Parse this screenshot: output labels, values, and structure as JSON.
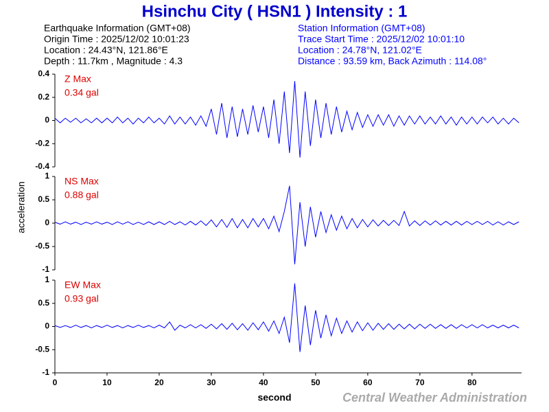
{
  "header": {
    "title": "Hsinchu City ( HSN1 ) Intensity : 1",
    "earthquake_info": [
      "Earthquake Information (GMT+08)",
      "Origin Time : 2025/12/02 10:01:23",
      "Location : 24.43°N, 121.86°E",
      "Depth : 11.7km , Magnitude : 4.3"
    ],
    "station_info": [
      "Station Information (GMT+08)",
      "Trace Start Time : 2025/12/02 10:01:10",
      "Location : 24.78°N, 121.02°E",
      "Distance : 93.59 km, Back Azimuth : 114.08°"
    ]
  },
  "ylabel": "acceleration",
  "footer": "Central Weather Administration",
  "chart_data": [
    {
      "type": "line",
      "annotation": [
        "Z Max",
        "0.34 gal"
      ],
      "color": "#0000ff",
      "xlim": [
        0,
        89.5
      ],
      "ylim": [
        -0.4,
        0.4
      ],
      "yticks": [
        0.4,
        0.2,
        0,
        -0.2,
        -0.4
      ],
      "x": [
        0,
        1,
        2,
        3,
        4,
        5,
        6,
        7,
        8,
        9,
        10,
        11,
        12,
        13,
        14,
        15,
        16,
        17,
        18,
        19,
        20,
        21,
        22,
        23,
        24,
        25,
        26,
        27,
        28,
        29,
        30,
        31,
        32,
        33,
        34,
        35,
        36,
        37,
        38,
        39,
        40,
        41,
        42,
        43,
        44,
        45,
        46,
        47,
        48,
        49,
        50,
        51,
        52,
        53,
        54,
        55,
        56,
        57,
        58,
        59,
        60,
        61,
        62,
        63,
        64,
        65,
        66,
        67,
        68,
        69,
        70,
        71,
        72,
        73,
        74,
        75,
        76,
        77,
        78,
        79,
        80,
        81,
        82,
        83,
        84,
        85,
        86,
        87,
        88,
        89
      ],
      "values": [
        0.02,
        -0.02,
        0.02,
        -0.015,
        0.02,
        -0.02,
        0.015,
        -0.02,
        0.02,
        -0.02,
        0.02,
        -0.02,
        0.03,
        -0.02,
        0.02,
        -0.03,
        0.02,
        -0.02,
        0.03,
        -0.02,
        0.02,
        -0.03,
        0.04,
        -0.03,
        0.03,
        -0.03,
        0.03,
        -0.04,
        0.04,
        -0.05,
        0.1,
        -0.12,
        0.15,
        -0.15,
        0.12,
        -0.14,
        0.1,
        -0.12,
        0.13,
        -0.1,
        0.12,
        -0.15,
        0.18,
        -0.2,
        0.25,
        -0.28,
        0.34,
        -0.32,
        0.25,
        -0.22,
        0.18,
        -0.15,
        0.15,
        -0.12,
        0.12,
        -0.1,
        0.08,
        -0.08,
        0.07,
        -0.06,
        0.05,
        -0.05,
        0.05,
        -0.04,
        0.05,
        -0.05,
        0.04,
        -0.04,
        0.04,
        -0.03,
        0.04,
        -0.03,
        0.03,
        -0.03,
        0.04,
        -0.03,
        0.03,
        -0.04,
        0.03,
        -0.03,
        0.03,
        -0.03,
        0.03,
        -0.02,
        0.03,
        -0.03,
        0.02,
        -0.03,
        0.02,
        -0.02
      ]
    },
    {
      "type": "line",
      "annotation": [
        "NS Max",
        "0.88 gal"
      ],
      "color": "#0000ff",
      "xlim": [
        0,
        89.5
      ],
      "ylim": [
        -1,
        1
      ],
      "yticks": [
        1,
        0.5,
        0,
        -0.5,
        -1
      ],
      "x": [
        0,
        1,
        2,
        3,
        4,
        5,
        6,
        7,
        8,
        9,
        10,
        11,
        12,
        13,
        14,
        15,
        16,
        17,
        18,
        19,
        20,
        21,
        22,
        23,
        24,
        25,
        26,
        27,
        28,
        29,
        30,
        31,
        32,
        33,
        34,
        35,
        36,
        37,
        38,
        39,
        40,
        41,
        42,
        43,
        44,
        45,
        46,
        47,
        48,
        49,
        50,
        51,
        52,
        53,
        54,
        55,
        56,
        57,
        58,
        59,
        60,
        61,
        62,
        63,
        64,
        65,
        66,
        67,
        68,
        69,
        70,
        71,
        72,
        73,
        74,
        75,
        76,
        77,
        78,
        79,
        80,
        81,
        82,
        83,
        84,
        85,
        86,
        87,
        88,
        89
      ],
      "values": [
        0.02,
        -0.02,
        0.03,
        -0.02,
        0.02,
        -0.03,
        0.02,
        -0.02,
        0.03,
        -0.02,
        0.02,
        -0.03,
        0.03,
        -0.02,
        0.03,
        -0.03,
        0.02,
        -0.03,
        0.03,
        -0.03,
        0.03,
        -0.03,
        0.04,
        -0.03,
        0.03,
        -0.04,
        0.04,
        -0.04,
        0.05,
        -0.05,
        0.07,
        -0.08,
        0.08,
        -0.09,
        0.1,
        -0.1,
        0.08,
        -0.1,
        0.1,
        -0.08,
        0.1,
        -0.12,
        0.15,
        -0.18,
        0.25,
        0.8,
        -0.88,
        0.45,
        -0.5,
        0.35,
        -0.3,
        0.25,
        -0.2,
        0.18,
        -0.15,
        0.15,
        -0.12,
        0.1,
        -0.1,
        0.08,
        -0.08,
        0.07,
        -0.06,
        0.06,
        -0.05,
        0.06,
        -0.05,
        0.25,
        -0.06,
        0.05,
        -0.05,
        0.05,
        -0.04,
        0.05,
        -0.04,
        0.04,
        -0.04,
        0.04,
        -0.04,
        0.04,
        -0.03,
        0.04,
        -0.03,
        0.04,
        -0.04,
        0.03,
        -0.04,
        0.03,
        -0.03,
        0.03
      ]
    },
    {
      "type": "line",
      "annotation": [
        "EW Max",
        "0.93 gal"
      ],
      "color": "#0000ff",
      "xlabel": "second",
      "xlim": [
        0,
        89.5
      ],
      "ylim": [
        -1,
        1
      ],
      "yticks": [
        1,
        0.5,
        0,
        -0.5,
        -1
      ],
      "xticks": [
        0,
        10,
        20,
        30,
        40,
        50,
        60,
        70,
        80
      ],
      "x": [
        0,
        1,
        2,
        3,
        4,
        5,
        6,
        7,
        8,
        9,
        10,
        11,
        12,
        13,
        14,
        15,
        16,
        17,
        18,
        19,
        20,
        21,
        22,
        23,
        24,
        25,
        26,
        27,
        28,
        29,
        30,
        31,
        32,
        33,
        34,
        35,
        36,
        37,
        38,
        39,
        40,
        41,
        42,
        43,
        44,
        45,
        46,
        47,
        48,
        49,
        50,
        51,
        52,
        53,
        54,
        55,
        56,
        57,
        58,
        59,
        60,
        61,
        62,
        63,
        64,
        65,
        66,
        67,
        68,
        69,
        70,
        71,
        72,
        73,
        74,
        75,
        76,
        77,
        78,
        79,
        80,
        81,
        82,
        83,
        84,
        85,
        86,
        87,
        88,
        89
      ],
      "values": [
        0.02,
        -0.02,
        0.02,
        -0.02,
        0.03,
        -0.02,
        0.02,
        -0.03,
        0.02,
        -0.02,
        0.03,
        -0.02,
        0.02,
        -0.03,
        0.02,
        -0.02,
        0.03,
        -0.02,
        0.02,
        -0.03,
        0.03,
        -0.03,
        0.1,
        -0.08,
        0.03,
        -0.03,
        0.04,
        -0.03,
        0.04,
        -0.04,
        0.05,
        -0.05,
        0.06,
        -0.06,
        0.07,
        -0.07,
        0.06,
        -0.08,
        0.08,
        -0.07,
        0.1,
        -0.1,
        0.12,
        -0.15,
        0.2,
        -0.35,
        0.93,
        -0.55,
        0.45,
        -0.4,
        0.35,
        -0.25,
        0.25,
        -0.2,
        0.18,
        -0.15,
        0.12,
        -0.12,
        0.1,
        -0.09,
        0.08,
        -0.08,
        0.07,
        -0.06,
        0.06,
        -0.06,
        0.05,
        -0.05,
        0.05,
        -0.05,
        0.05,
        -0.04,
        0.05,
        -0.04,
        0.04,
        -0.04,
        0.04,
        -0.04,
        0.04,
        -0.03,
        0.04,
        -0.03,
        0.04,
        -0.03,
        0.03,
        -0.03,
        0.03,
        -0.03,
        0.03,
        -0.03
      ]
    }
  ]
}
